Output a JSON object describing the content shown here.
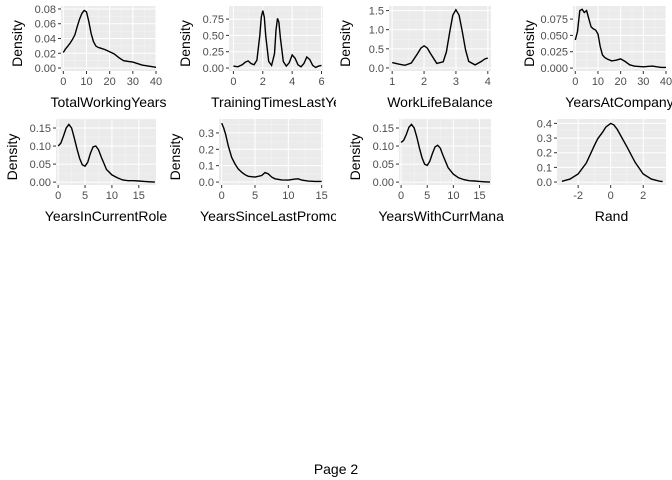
{
  "page_label": "Page 2",
  "chart_data": [
    {
      "type": "line",
      "xlabel": "TotalWorkingYears",
      "ylabel": "Density",
      "xlim": [
        -1,
        40
      ],
      "ylim": [
        -0.004,
        0.084
      ],
      "xticks": [
        0,
        10,
        20,
        30,
        40
      ],
      "yticks": [
        0.0,
        0.02,
        0.04,
        0.06,
        0.08
      ],
      "ytick_labels": [
        "0.00",
        "0.02",
        "0.04",
        "0.06",
        "0.08"
      ],
      "x": [
        0,
        1,
        2,
        3,
        4,
        5,
        6,
        7,
        8,
        9,
        10,
        11,
        12,
        13,
        14,
        15,
        16,
        18,
        20,
        22,
        24,
        26,
        28,
        30,
        32,
        34,
        36,
        38,
        40
      ],
      "y": [
        0.021,
        0.026,
        0.03,
        0.034,
        0.039,
        0.045,
        0.056,
        0.066,
        0.074,
        0.078,
        0.076,
        0.063,
        0.047,
        0.036,
        0.03,
        0.028,
        0.027,
        0.025,
        0.022,
        0.019,
        0.014,
        0.01,
        0.009,
        0.008,
        0.006,
        0.004,
        0.003,
        0.002,
        0.001
      ]
    },
    {
      "type": "line",
      "xlabel": "TrainingTimesLastYe",
      "ylabel": "Density",
      "xlim": [
        -0.3,
        6.1
      ],
      "ylim": [
        -0.045,
        0.95
      ],
      "xticks": [
        0,
        2,
        4,
        6
      ],
      "yticks": [
        0.0,
        0.25,
        0.5,
        0.75
      ],
      "ytick_labels": [
        "0.00",
        "0.25",
        "0.50",
        "0.75"
      ],
      "x": [
        0,
        0.3,
        0.6,
        0.8,
        1.0,
        1.2,
        1.4,
        1.6,
        1.8,
        1.9,
        2.0,
        2.1,
        2.2,
        2.4,
        2.6,
        2.8,
        2.9,
        3.0,
        3.1,
        3.2,
        3.4,
        3.6,
        3.8,
        4.0,
        4.2,
        4.4,
        4.6,
        4.8,
        5.0,
        5.2,
        5.4,
        5.6,
        5.8,
        6.0
      ],
      "y": [
        0.03,
        0.02,
        0.05,
        0.09,
        0.11,
        0.07,
        0.05,
        0.12,
        0.5,
        0.78,
        0.88,
        0.78,
        0.5,
        0.1,
        0.04,
        0.22,
        0.58,
        0.76,
        0.7,
        0.46,
        0.1,
        0.03,
        0.08,
        0.2,
        0.15,
        0.05,
        0.02,
        0.07,
        0.17,
        0.13,
        0.04,
        0.01,
        0.03,
        0.04
      ]
    },
    {
      "type": "line",
      "xlabel": "WorkLifeBalance",
      "ylabel": "Density",
      "xlim": [
        0.9,
        4.1
      ],
      "ylim": [
        -0.08,
        1.62
      ],
      "xticks": [
        1,
        2,
        3,
        4
      ],
      "yticks": [
        0.0,
        0.5,
        1.0,
        1.5
      ],
      "ytick_labels": [
        "0.0",
        "0.5",
        "1.0",
        "1.5"
      ],
      "x": [
        1.0,
        1.2,
        1.4,
        1.6,
        1.8,
        1.9,
        2.0,
        2.1,
        2.2,
        2.4,
        2.6,
        2.7,
        2.8,
        2.9,
        3.0,
        3.1,
        3.2,
        3.3,
        3.4,
        3.6,
        3.8,
        3.9,
        4.0
      ],
      "y": [
        0.14,
        0.1,
        0.07,
        0.13,
        0.38,
        0.52,
        0.58,
        0.52,
        0.38,
        0.12,
        0.16,
        0.42,
        0.92,
        1.38,
        1.52,
        1.38,
        0.95,
        0.48,
        0.17,
        0.08,
        0.17,
        0.23,
        0.26
      ]
    },
    {
      "type": "line",
      "xlabel": "YearsAtCompany",
      "ylabel": "Density",
      "xlim": [
        -1,
        40
      ],
      "ylim": [
        -0.0045,
        0.095
      ],
      "xticks": [
        0,
        10,
        20,
        30,
        40
      ],
      "yticks": [
        0.0,
        0.025,
        0.05,
        0.075
      ],
      "ytick_labels": [
        "0.000",
        "0.025",
        "0.050",
        "0.075"
      ],
      "x": [
        0,
        1,
        2,
        3,
        4,
        5,
        6,
        7,
        8,
        9,
        10,
        11,
        12,
        13,
        14,
        16,
        18,
        20,
        22,
        24,
        26,
        30,
        34,
        36,
        38,
        40
      ],
      "y": [
        0.043,
        0.056,
        0.088,
        0.09,
        0.085,
        0.088,
        0.075,
        0.063,
        0.06,
        0.058,
        0.052,
        0.033,
        0.02,
        0.016,
        0.014,
        0.011,
        0.012,
        0.014,
        0.01,
        0.005,
        0.003,
        0.002,
        0.003,
        0.002,
        0.001,
        0.001
      ]
    },
    {
      "type": "line",
      "xlabel": "YearsInCurrentRole",
      "ylabel": "Density",
      "xlim": [
        -0.4,
        18.2
      ],
      "ylim": [
        -0.008,
        0.175
      ],
      "xticks": [
        0,
        5,
        10,
        15
      ],
      "yticks": [
        0.0,
        0.05,
        0.1,
        0.15
      ],
      "ytick_labels": [
        "0.00",
        "0.05",
        "0.10",
        "0.15"
      ],
      "x": [
        0,
        0.5,
        1,
        1.5,
        2,
        2.5,
        3,
        3.5,
        4,
        4.5,
        5,
        5.5,
        6,
        6.5,
        7,
        7.5,
        8,
        9,
        10,
        11,
        12,
        13,
        14,
        15,
        16,
        17,
        18
      ],
      "y": [
        0.1,
        0.108,
        0.128,
        0.15,
        0.16,
        0.15,
        0.122,
        0.092,
        0.065,
        0.048,
        0.044,
        0.055,
        0.08,
        0.098,
        0.1,
        0.09,
        0.07,
        0.035,
        0.02,
        0.012,
        0.006,
        0.004,
        0.004,
        0.003,
        0.002,
        0.001,
        0.0
      ]
    },
    {
      "type": "line",
      "xlabel": "YearsSinceLastPromot",
      "ylabel": "Density",
      "xlim": [
        -0.4,
        15.2
      ],
      "ylim": [
        -0.018,
        0.385
      ],
      "xticks": [
        0,
        5,
        10,
        15
      ],
      "yticks": [
        0.0,
        0.1,
        0.2,
        0.3
      ],
      "ytick_labels": [
        "0.0",
        "0.1",
        "0.2",
        "0.3"
      ],
      "x": [
        0,
        0.3,
        0.6,
        1,
        1.5,
        2,
        2.5,
        3,
        3.5,
        4,
        5,
        6,
        6.5,
        7,
        7.5,
        8,
        9,
        10,
        11,
        11.5,
        12,
        13,
        14,
        15
      ],
      "y": [
        0.36,
        0.33,
        0.29,
        0.22,
        0.15,
        0.11,
        0.08,
        0.06,
        0.045,
        0.035,
        0.03,
        0.04,
        0.058,
        0.05,
        0.03,
        0.02,
        0.013,
        0.012,
        0.018,
        0.02,
        0.012,
        0.006,
        0.004,
        0.004
      ]
    },
    {
      "type": "line",
      "xlabel": "YearsWithCurrManag",
      "ylabel": "Density",
      "xlim": [
        -0.4,
        17.2
      ],
      "ylim": [
        -0.008,
        0.175
      ],
      "xticks": [
        0,
        5,
        10,
        15
      ],
      "yticks": [
        0.0,
        0.05,
        0.1,
        0.15
      ],
      "ytick_labels": [
        "0.00",
        "0.05",
        "0.10",
        "0.15"
      ],
      "x": [
        0,
        0.5,
        1,
        1.5,
        2,
        2.5,
        3,
        3.5,
        4,
        4.5,
        5,
        5.5,
        6,
        6.5,
        7,
        7.5,
        8,
        9,
        10,
        11,
        12,
        13,
        14,
        15,
        16,
        17
      ],
      "y": [
        0.11,
        0.116,
        0.132,
        0.152,
        0.16,
        0.15,
        0.125,
        0.095,
        0.068,
        0.05,
        0.046,
        0.058,
        0.08,
        0.098,
        0.102,
        0.094,
        0.075,
        0.04,
        0.022,
        0.012,
        0.007,
        0.004,
        0.003,
        0.002,
        0.001,
        0.0
      ]
    },
    {
      "type": "line",
      "xlabel": "Rand",
      "ylabel": "",
      "xlim": [
        -3.3,
        3.4
      ],
      "ylim": [
        -0.02,
        0.43
      ],
      "xticks": [
        -2,
        0,
        2
      ],
      "yticks": [
        0.0,
        0.1,
        0.2,
        0.3,
        0.4
      ],
      "ytick_labels": [
        "0.0",
        "0.1",
        "0.2",
        "0.3",
        "0.4"
      ],
      "x": [
        -3.0,
        -2.5,
        -2.0,
        -1.5,
        -1.0,
        -0.8,
        -0.5,
        -0.3,
        0.0,
        0.2,
        0.4,
        0.7,
        1.0,
        1.5,
        2.0,
        2.5,
        3.0,
        3.2
      ],
      "y": [
        0.005,
        0.02,
        0.055,
        0.13,
        0.25,
        0.295,
        0.34,
        0.375,
        0.4,
        0.39,
        0.36,
        0.3,
        0.24,
        0.135,
        0.055,
        0.02,
        0.006,
        0.003
      ]
    }
  ]
}
